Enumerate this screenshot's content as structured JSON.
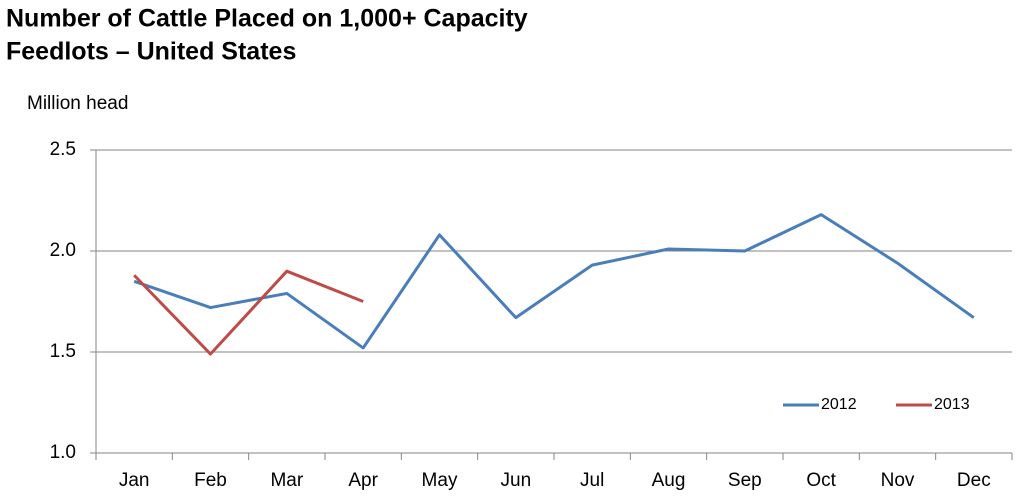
{
  "chart_data": {
    "type": "line",
    "title": [
      "Number of Cattle Placed on 1,000+ Capacity",
      "Feedlots – United States"
    ],
    "y_label": "Million head",
    "categories": [
      "Jan",
      "Feb",
      "Mar",
      "Apr",
      "May",
      "Jun",
      "Jul",
      "Aug",
      "Sep",
      "Oct",
      "Nov",
      "Dec"
    ],
    "series": [
      {
        "name": "2012",
        "color": "#4a7ebb",
        "values": [
          1.85,
          1.72,
          1.79,
          1.52,
          2.08,
          1.67,
          1.93,
          2.01,
          2.0,
          2.18,
          1.94,
          1.67
        ]
      },
      {
        "name": "2013",
        "color": "#be4b48",
        "values": [
          1.88,
          1.49,
          1.9,
          1.75,
          null,
          null,
          null,
          null,
          null,
          null,
          null,
          null
        ]
      }
    ],
    "ylim": [
      1.0,
      2.5
    ],
    "yticks": [
      {
        "value": 1.0,
        "label": "1.0"
      },
      {
        "value": 1.5,
        "label": "1.5"
      },
      {
        "value": 2.0,
        "label": "2.0"
      },
      {
        "value": 2.5,
        "label": "2.5"
      }
    ],
    "grid": true,
    "legend": "lower right"
  }
}
